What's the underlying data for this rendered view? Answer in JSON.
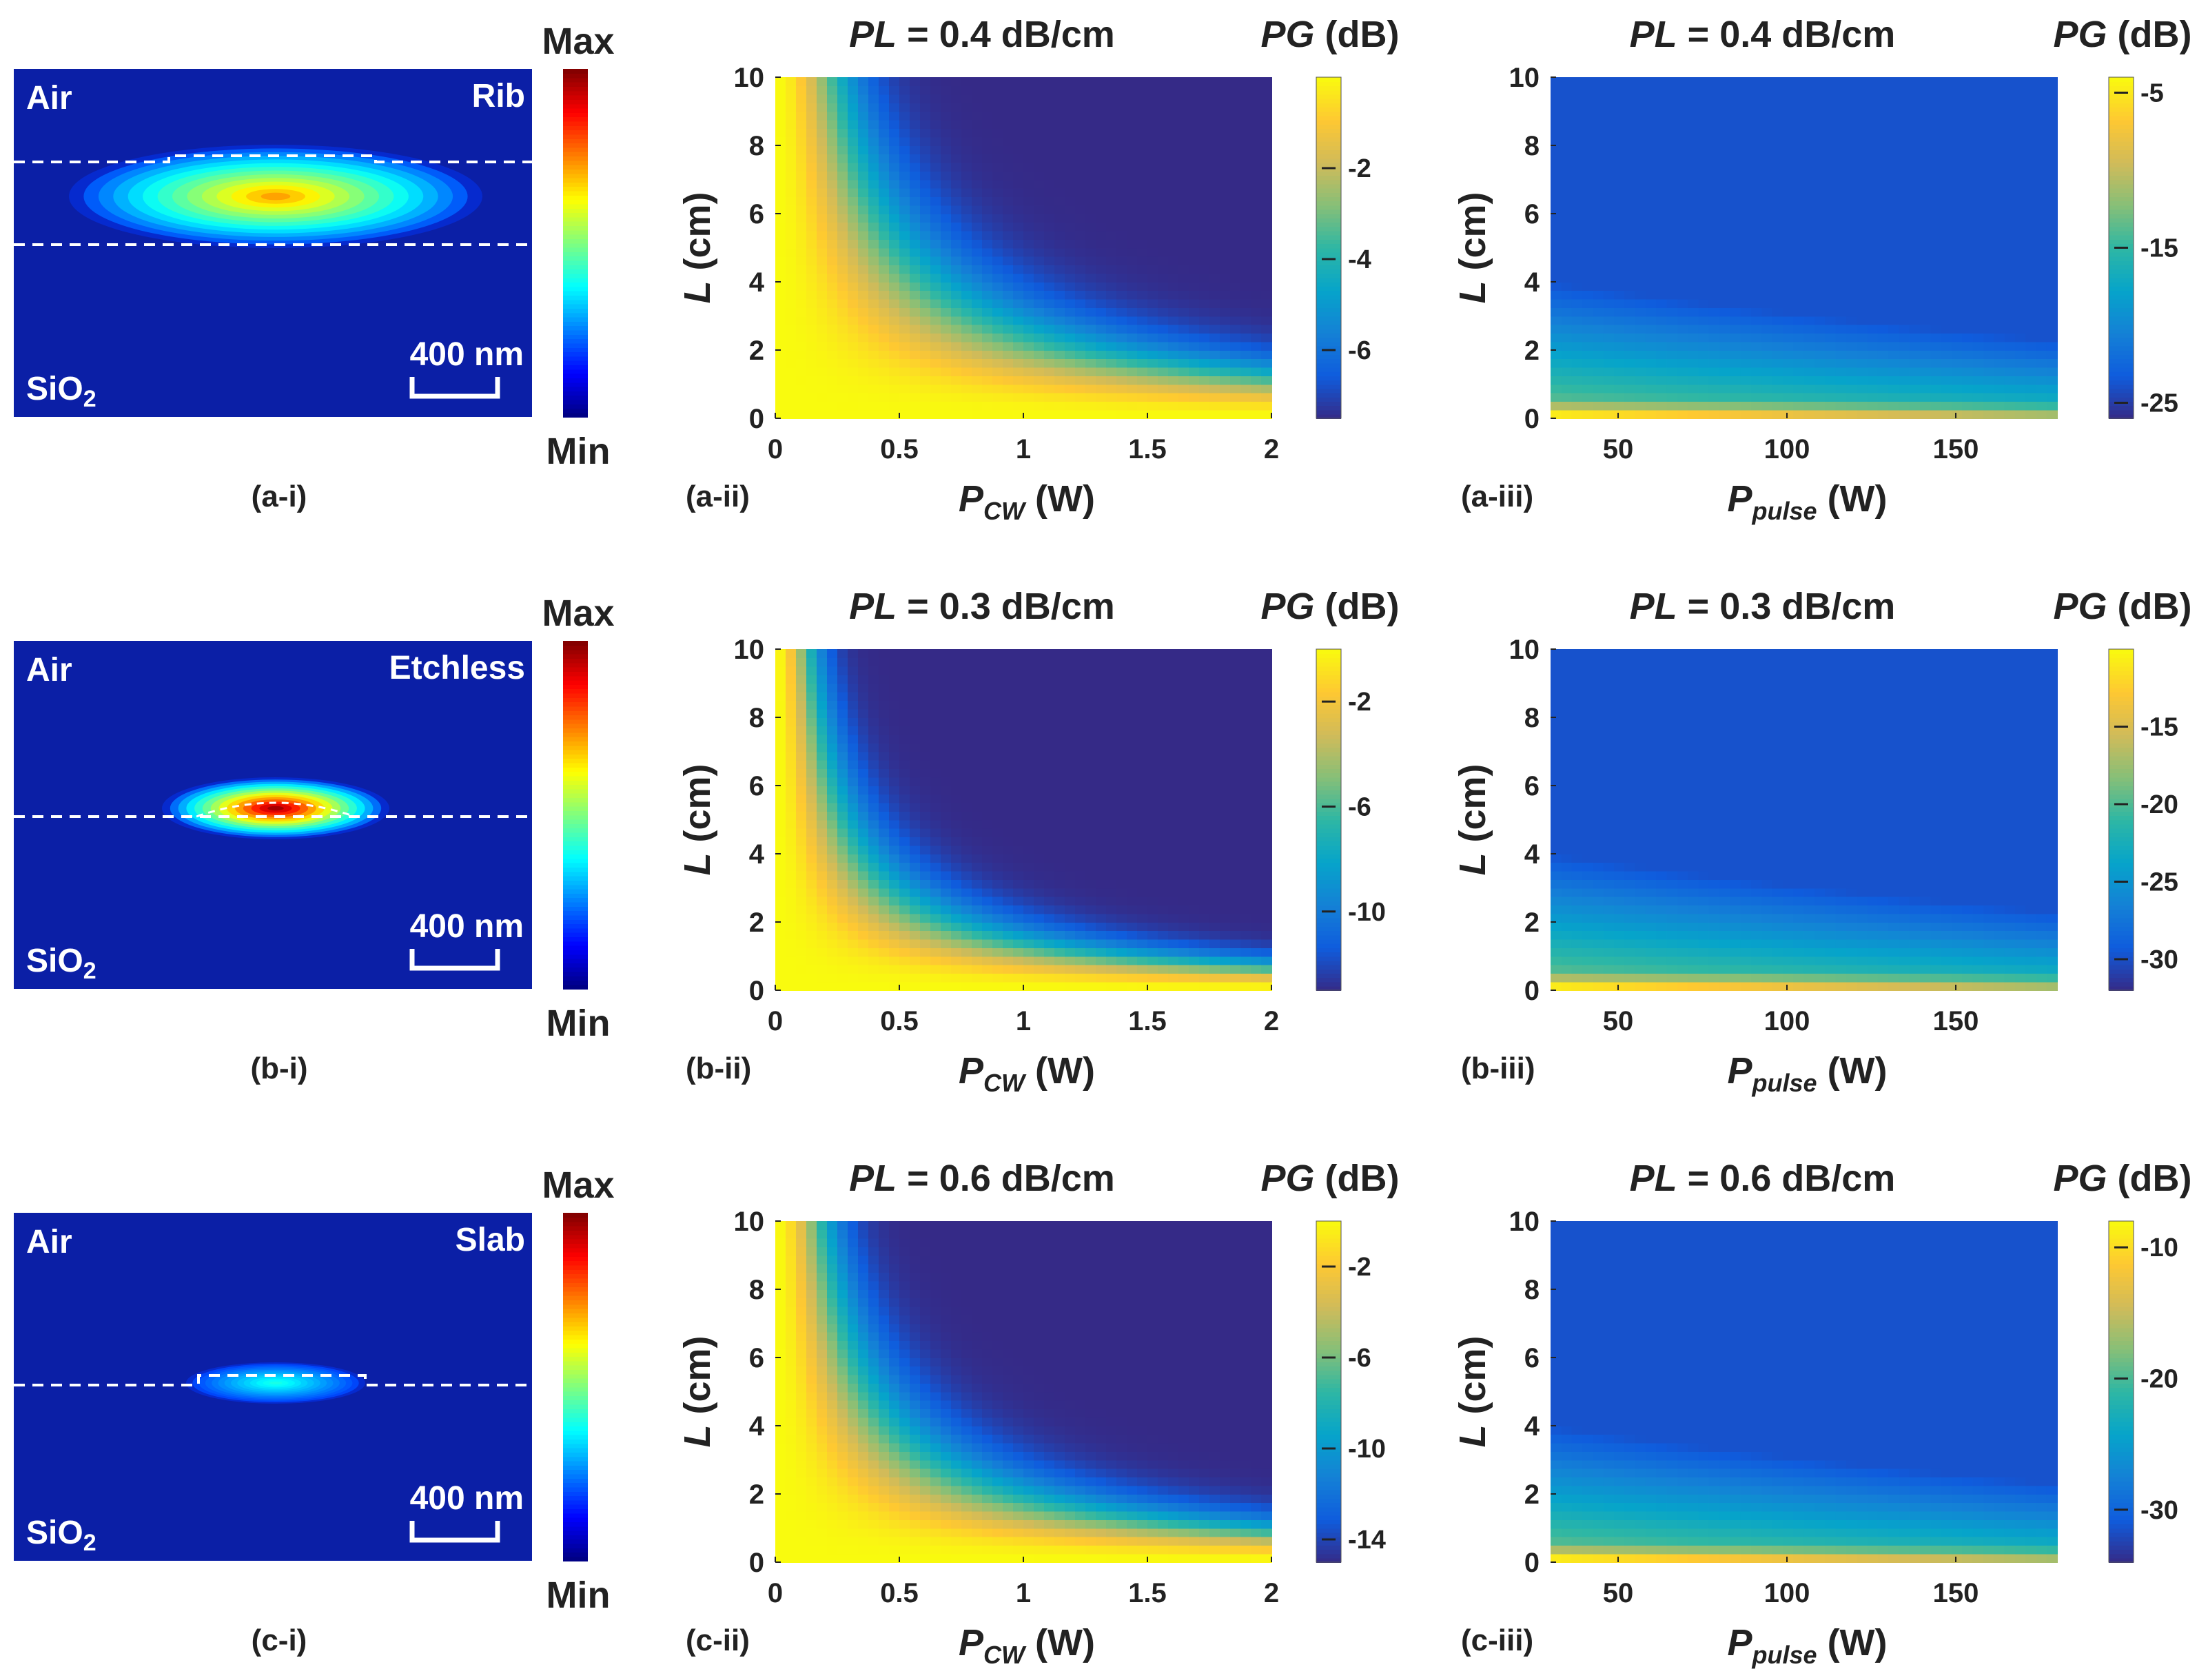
{
  "colors": {
    "background": "#ffffff",
    "text": "#222222",
    "mode_background": "#0b1fa6",
    "parula": [
      "#352a87",
      "#0f5cdd",
      "#1481d6",
      "#06a4ca",
      "#2eb7a4",
      "#87bf77",
      "#d1bb59",
      "#fec832",
      "#f9fb0e"
    ],
    "jet": [
      "#00007f",
      "#0000ff",
      "#007fff",
      "#00ffff",
      "#7fff7f",
      "#ffff00",
      "#ff7f00",
      "#ff0000",
      "#7f0000"
    ]
  },
  "mode_profiles": [
    {
      "id": "a-i",
      "label": "(a-i)",
      "medium_top": "Air",
      "structure": "Rib",
      "substrate_base": "SiO",
      "substrate_sub": "2",
      "scale_bar": "400 nm",
      "cbar_max": "Max",
      "cbar_min": "Min",
      "peak": "medium"
    },
    {
      "id": "b-i",
      "label": "(b-i)",
      "medium_top": "Air",
      "structure": "Etchless",
      "substrate_base": "SiO",
      "substrate_sub": "2",
      "scale_bar": "400 nm",
      "cbar_max": "Max",
      "cbar_min": "Min",
      "peak": "high"
    },
    {
      "id": "c-i",
      "label": "(c-i)",
      "medium_top": "Air",
      "structure": "Slab",
      "substrate_base": "SiO",
      "substrate_sub": "2",
      "scale_bar": "400 nm",
      "cbar_max": "Max",
      "cbar_min": "Min",
      "peak": "low"
    }
  ],
  "chart_data": [
    {
      "id": "a-ii",
      "type": "heatmap",
      "panel_label": "(a-ii)",
      "title_var": "PL",
      "title_rest": " = 0.4 dB/cm",
      "xlabel_base": "P",
      "xlabel_sub": "CW",
      "xlabel_unit": " (W)",
      "ylabel": "L",
      "ylabel_unit": " (cm)",
      "cbar_title_var": "PG",
      "cbar_title_unit": " (dB)",
      "xlim": [
        0,
        2
      ],
      "ylim": [
        0,
        10
      ],
      "xticks": [
        {
          "v": 0,
          "t": "0"
        },
        {
          "v": 0.5,
          "t": "0.5"
        },
        {
          "v": 1,
          "t": "1"
        },
        {
          "v": 1.5,
          "t": "1.5"
        },
        {
          "v": 2,
          "t": "2"
        }
      ],
      "yticks": [
        {
          "v": 0,
          "t": "0"
        },
        {
          "v": 2,
          "t": "2"
        },
        {
          "v": 4,
          "t": "4"
        },
        {
          "v": 6,
          "t": "6"
        },
        {
          "v": 8,
          "t": "8"
        },
        {
          "v": 10,
          "t": "10"
        }
      ],
      "clim": [
        -7.5,
        0
      ],
      "cticks": [
        {
          "v": -2,
          "t": "-2"
        },
        {
          "v": -4,
          "t": "-4"
        },
        {
          "v": -6,
          "t": "-6"
        }
      ],
      "model": "cw",
      "k": 0.75
    },
    {
      "id": "a-iii",
      "type": "heatmap",
      "panel_label": "(a-iii)",
      "title_var": "PL",
      "title_rest": " = 0.4 dB/cm",
      "xlabel_base": "P",
      "xlabel_sub": "pulse",
      "xlabel_unit": " (W)",
      "ylabel": "L",
      "ylabel_unit": " (cm)",
      "cbar_title_var": "PG",
      "cbar_title_unit": " (dB)",
      "xlim": [
        30,
        180
      ],
      "ylim": [
        0,
        10
      ],
      "xticks": [
        {
          "v": 50,
          "t": "50"
        },
        {
          "v": 100,
          "t": "100"
        },
        {
          "v": 150,
          "t": "150"
        }
      ],
      "yticks": [
        {
          "v": 0,
          "t": "0"
        },
        {
          "v": 2,
          "t": "2"
        },
        {
          "v": 4,
          "t": "4"
        },
        {
          "v": 6,
          "t": "6"
        },
        {
          "v": 8,
          "t": "8"
        },
        {
          "v": 10,
          "t": "10"
        }
      ],
      "clim": [
        -26,
        -4
      ],
      "cticks": [
        {
          "v": -5,
          "t": "-5"
        },
        {
          "v": -15,
          "t": "-15"
        },
        {
          "v": -25,
          "t": "-25"
        }
      ],
      "model": "pulse"
    },
    {
      "id": "b-ii",
      "type": "heatmap",
      "panel_label": "(b-ii)",
      "title_var": "PL",
      "title_rest": " = 0.3 dB/cm",
      "xlabel_base": "P",
      "xlabel_sub": "CW",
      "xlabel_unit": " (W)",
      "ylabel": "L",
      "ylabel_unit": " (cm)",
      "cbar_title_var": "PG",
      "cbar_title_unit": " (dB)",
      "xlim": [
        0,
        2
      ],
      "ylim": [
        0,
        10
      ],
      "xticks": [
        {
          "v": 0,
          "t": "0"
        },
        {
          "v": 0.5,
          "t": "0.5"
        },
        {
          "v": 1,
          "t": "1"
        },
        {
          "v": 1.5,
          "t": "1.5"
        },
        {
          "v": 2,
          "t": "2"
        }
      ],
      "yticks": [
        {
          "v": 0,
          "t": "0"
        },
        {
          "v": 2,
          "t": "2"
        },
        {
          "v": 4,
          "t": "4"
        },
        {
          "v": 6,
          "t": "6"
        },
        {
          "v": 8,
          "t": "8"
        },
        {
          "v": 10,
          "t": "10"
        }
      ],
      "clim": [
        -13,
        0
      ],
      "cticks": [
        {
          "v": -2,
          "t": "-2"
        },
        {
          "v": -6,
          "t": "-6"
        },
        {
          "v": -10,
          "t": "-10"
        }
      ],
      "model": "cw",
      "k": 2.4
    },
    {
      "id": "b-iii",
      "type": "heatmap",
      "panel_label": "(b-iii)",
      "title_var": "PL",
      "title_rest": " = 0.3 dB/cm",
      "xlabel_base": "P",
      "xlabel_sub": "pulse",
      "xlabel_unit": " (W)",
      "ylabel": "L",
      "ylabel_unit": " (cm)",
      "cbar_title_var": "PG",
      "cbar_title_unit": " (dB)",
      "xlim": [
        30,
        180
      ],
      "ylim": [
        0,
        10
      ],
      "xticks": [
        {
          "v": 50,
          "t": "50"
        },
        {
          "v": 100,
          "t": "100"
        },
        {
          "v": 150,
          "t": "150"
        }
      ],
      "yticks": [
        {
          "v": 0,
          "t": "0"
        },
        {
          "v": 2,
          "t": "2"
        },
        {
          "v": 4,
          "t": "4"
        },
        {
          "v": 6,
          "t": "6"
        },
        {
          "v": 8,
          "t": "8"
        },
        {
          "v": 10,
          "t": "10"
        }
      ],
      "clim": [
        -32,
        -10
      ],
      "cticks": [
        {
          "v": -15,
          "t": "-15"
        },
        {
          "v": -20,
          "t": "-20"
        },
        {
          "v": -25,
          "t": "-25"
        },
        {
          "v": -30,
          "t": "-30"
        }
      ],
      "model": "pulse"
    },
    {
      "id": "c-ii",
      "type": "heatmap",
      "panel_label": "(c-ii)",
      "title_var": "PL",
      "title_rest": " = 0.6 dB/cm",
      "xlabel_base": "P",
      "xlabel_sub": "CW",
      "xlabel_unit": " (W)",
      "ylabel": "L",
      "ylabel_unit": " (cm)",
      "cbar_title_var": "PG",
      "cbar_title_unit": " (dB)",
      "xlim": [
        0,
        2
      ],
      "ylim": [
        0,
        10
      ],
      "xticks": [
        {
          "v": 0,
          "t": "0"
        },
        {
          "v": 0.5,
          "t": "0.5"
        },
        {
          "v": 1,
          "t": "1"
        },
        {
          "v": 1.5,
          "t": "1.5"
        },
        {
          "v": 2,
          "t": "2"
        }
      ],
      "yticks": [
        {
          "v": 0,
          "t": "0"
        },
        {
          "v": 2,
          "t": "2"
        },
        {
          "v": 4,
          "t": "4"
        },
        {
          "v": 6,
          "t": "6"
        },
        {
          "v": 8,
          "t": "8"
        },
        {
          "v": 10,
          "t": "10"
        }
      ],
      "clim": [
        -15,
        0
      ],
      "cticks": [
        {
          "v": -2,
          "t": "-2"
        },
        {
          "v": -6,
          "t": "-6"
        },
        {
          "v": -10,
          "t": "-10"
        },
        {
          "v": -14,
          "t": "-14"
        }
      ],
      "model": "cw",
      "k": 1.3
    },
    {
      "id": "c-iii",
      "type": "heatmap",
      "panel_label": "(c-iii)",
      "title_var": "PL",
      "title_rest": " = 0.6 dB/cm",
      "xlabel_base": "P",
      "xlabel_sub": "pulse",
      "xlabel_unit": " (W)",
      "ylabel": "L",
      "ylabel_unit": " (cm)",
      "cbar_title_var": "PG",
      "cbar_title_unit": " (dB)",
      "xlim": [
        30,
        180
      ],
      "ylim": [
        0,
        10
      ],
      "xticks": [
        {
          "v": 50,
          "t": "50"
        },
        {
          "v": 100,
          "t": "100"
        },
        {
          "v": 150,
          "t": "150"
        }
      ],
      "yticks": [
        {
          "v": 0,
          "t": "0"
        },
        {
          "v": 2,
          "t": "2"
        },
        {
          "v": 4,
          "t": "4"
        },
        {
          "v": 6,
          "t": "6"
        },
        {
          "v": 8,
          "t": "8"
        },
        {
          "v": 10,
          "t": "10"
        }
      ],
      "clim": [
        -34,
        -8
      ],
      "cticks": [
        {
          "v": -10,
          "t": "-10"
        },
        {
          "v": -20,
          "t": "-20"
        },
        {
          "v": -30,
          "t": "-30"
        }
      ],
      "model": "pulse"
    }
  ]
}
